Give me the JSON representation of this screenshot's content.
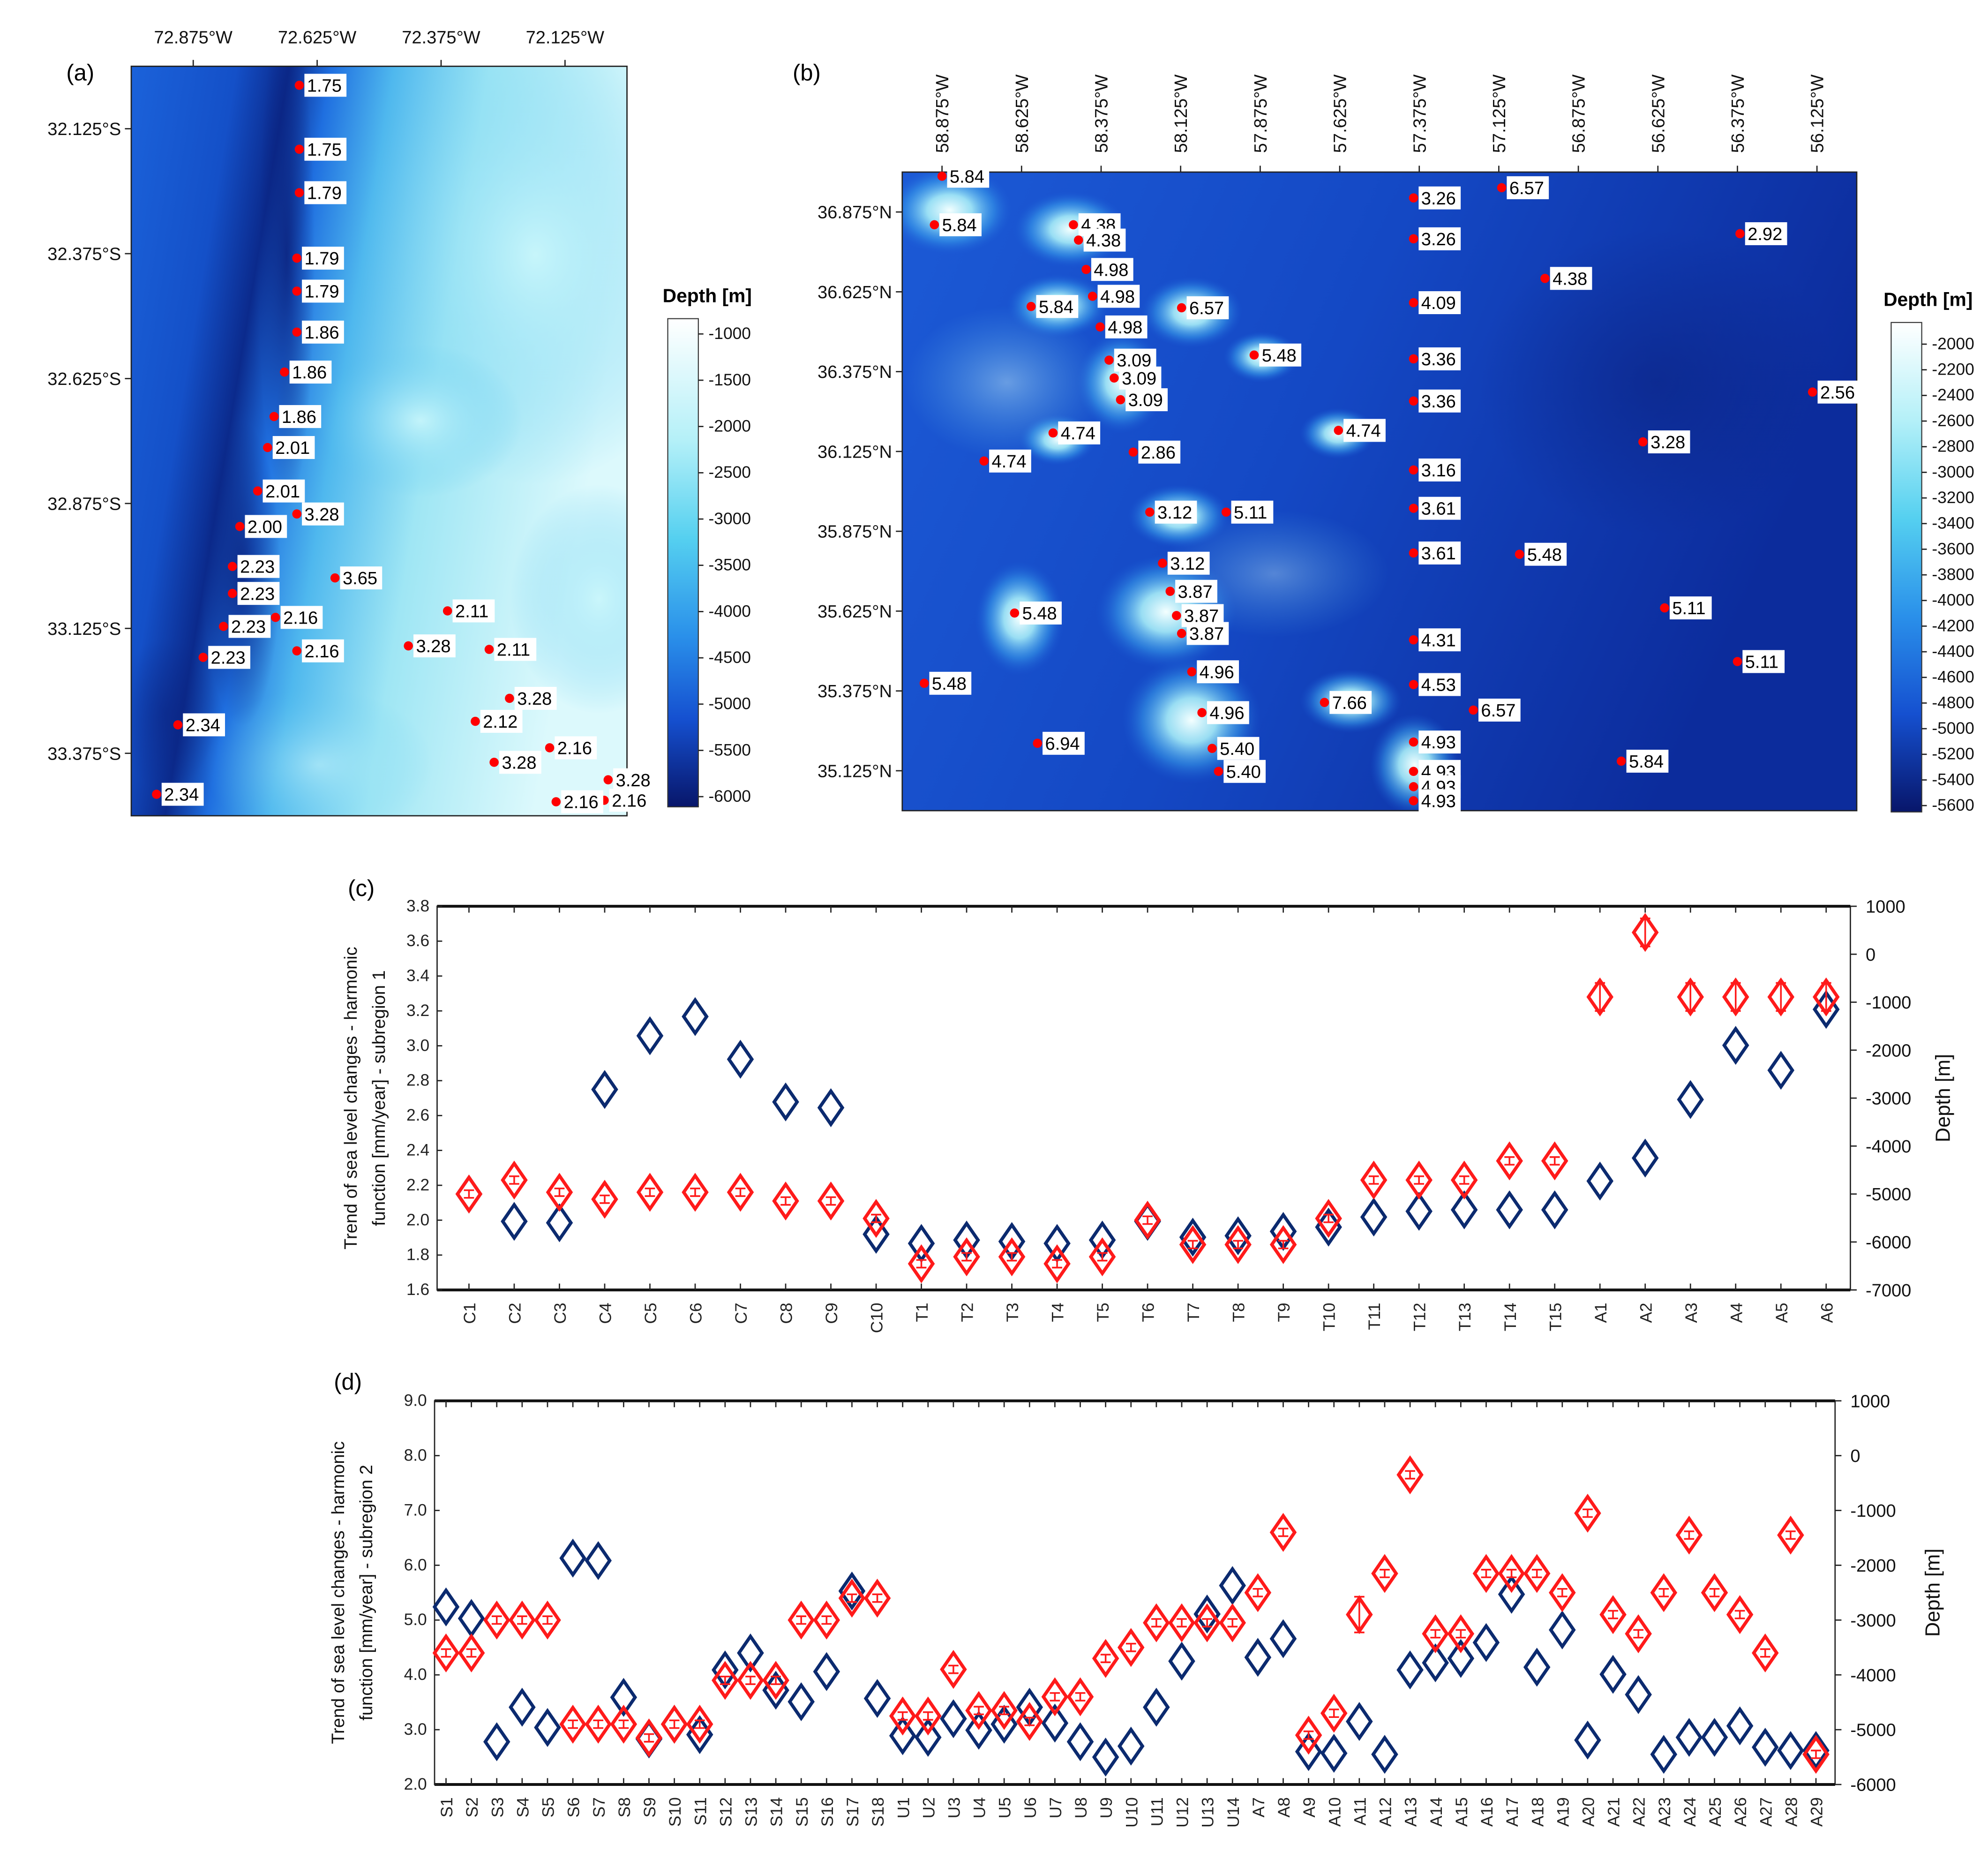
{
  "panels": {
    "a": "(a)",
    "b": "(b)",
    "c": "(c)",
    "d": "(d)"
  },
  "colors": {
    "point": "#ff0000",
    "trend": "#ff1a1a",
    "depth": "#0b2a6f"
  },
  "chart_data": [
    {
      "type": "scatter",
      "kind": "bathymetric map with labelled points",
      "title": "(a)",
      "lon_range_W": [
        73.0,
        72.0
      ],
      "lat_range_S": [
        32.0,
        33.5
      ],
      "x_ticks": [
        {
          "value": 72.875,
          "label": "72.875°W"
        },
        {
          "value": 72.625,
          "label": "72.625°W"
        },
        {
          "value": 72.375,
          "label": "72.375°W"
        },
        {
          "value": 72.125,
          "label": "72.125°W"
        }
      ],
      "y_ticks": [
        {
          "value": 32.125,
          "label": "32.125°S"
        },
        {
          "value": 32.375,
          "label": "32.375°S"
        },
        {
          "value": 32.625,
          "label": "32.625°S"
        },
        {
          "value": 32.875,
          "label": "32.875°S"
        },
        {
          "value": 33.125,
          "label": "33.125°S"
        },
        {
          "value": 33.375,
          "label": "33.375°S"
        }
      ],
      "colorbar": {
        "label": "Depth [m]",
        "range": [
          -1000,
          -6000
        ],
        "ticks": [
          "-1000",
          "-1500",
          "-2000",
          "-2500",
          "-3000",
          "-3500",
          "-4000",
          "-4500",
          "-5000",
          "-5500",
          "-6000"
        ]
      },
      "points": [
        {
          "lon": 72.661,
          "lat": 32.038,
          "label": "1.75"
        },
        {
          "lon": 72.661,
          "lat": 32.166,
          "label": "1.75"
        },
        {
          "lon": 72.661,
          "lat": 32.253,
          "label": "1.79"
        },
        {
          "lon": 72.666,
          "lat": 32.384,
          "label": "1.79"
        },
        {
          "lon": 72.666,
          "lat": 32.45,
          "label": "1.79"
        },
        {
          "lon": 72.666,
          "lat": 32.532,
          "label": "1.86"
        },
        {
          "lon": 72.691,
          "lat": 32.612,
          "label": "1.86"
        },
        {
          "lon": 72.712,
          "lat": 32.701,
          "label": "1.86"
        },
        {
          "lon": 72.725,
          "lat": 32.763,
          "label": "2.01"
        },
        {
          "lon": 72.745,
          "lat": 32.85,
          "label": "2.01"
        },
        {
          "lon": 72.781,
          "lat": 32.921,
          "label": "2.00"
        },
        {
          "lon": 72.666,
          "lat": 32.896,
          "label": "3.28"
        },
        {
          "lon": 72.796,
          "lat": 33.001,
          "label": "2.23"
        },
        {
          "lon": 72.796,
          "lat": 33.055,
          "label": "2.23"
        },
        {
          "lon": 72.589,
          "lat": 33.024,
          "label": "3.65"
        },
        {
          "lon": 72.814,
          "lat": 33.121,
          "label": "2.23"
        },
        {
          "lon": 72.709,
          "lat": 33.103,
          "label": "2.16"
        },
        {
          "lon": 72.855,
          "lat": 33.183,
          "label": "2.23"
        },
        {
          "lon": 72.666,
          "lat": 33.17,
          "label": "2.16"
        },
        {
          "lon": 72.362,
          "lat": 33.09,
          "label": "2.11"
        },
        {
          "lon": 72.441,
          "lat": 33.16,
          "label": "3.28"
        },
        {
          "lon": 72.278,
          "lat": 33.167,
          "label": "2.11"
        },
        {
          "lon": 72.237,
          "lat": 33.265,
          "label": "3.28"
        },
        {
          "lon": 72.306,
          "lat": 33.311,
          "label": "2.12"
        },
        {
          "lon": 72.906,
          "lat": 33.318,
          "label": "2.34"
        },
        {
          "lon": 72.156,
          "lat": 33.364,
          "label": "2.16"
        },
        {
          "lon": 72.268,
          "lat": 33.393,
          "label": "3.28"
        },
        {
          "lon": 72.038,
          "lat": 33.428,
          "label": "3.28"
        },
        {
          "lon": 72.046,
          "lat": 33.469,
          "label": "2.16"
        },
        {
          "lon": 72.143,
          "lat": 33.472,
          "label": "2.16"
        },
        {
          "lon": 72.949,
          "lat": 33.457,
          "label": "2.34"
        }
      ]
    },
    {
      "type": "scatter",
      "kind": "bathymetric map with labelled points",
      "title": "(b)",
      "lon_range_W": [
        59.0,
        56.0
      ],
      "lat_range_N": [
        37.0,
        35.0
      ],
      "x_ticks": [
        {
          "value": 58.875,
          "label": "58.875°W"
        },
        {
          "value": 58.625,
          "label": "58.625°W"
        },
        {
          "value": 58.375,
          "label": "58.375°W"
        },
        {
          "value": 58.125,
          "label": "58.125°W"
        },
        {
          "value": 57.875,
          "label": "57.875°W"
        },
        {
          "value": 57.625,
          "label": "57.625°W"
        },
        {
          "value": 57.375,
          "label": "57.375°W"
        },
        {
          "value": 57.125,
          "label": "57.125°W"
        },
        {
          "value": 56.875,
          "label": "56.875°W"
        },
        {
          "value": 56.625,
          "label": "56.625°W"
        },
        {
          "value": 56.375,
          "label": "56.375°W"
        },
        {
          "value": 56.125,
          "label": "56.125°W"
        }
      ],
      "y_ticks": [
        {
          "value": 36.875,
          "label": "36.875°N"
        },
        {
          "value": 36.625,
          "label": "36.625°N"
        },
        {
          "value": 36.375,
          "label": "36.375°N"
        },
        {
          "value": 36.125,
          "label": "36.125°N"
        },
        {
          "value": 35.875,
          "label": "35.875°N"
        },
        {
          "value": 35.625,
          "label": "35.625°N"
        },
        {
          "value": 35.375,
          "label": "35.375°N"
        },
        {
          "value": 35.125,
          "label": "35.125°N"
        }
      ],
      "colorbar": {
        "label": "Depth [m]",
        "range": [
          -2000,
          -5600
        ],
        "ticks": [
          "-2000",
          "-2200",
          "-2400",
          "-2600",
          "-2800",
          "-3000",
          "-3200",
          "-3400",
          "-3600",
          "-3800",
          "-4000",
          "-4200",
          "-4400",
          "-4600",
          "-4800",
          "-5000",
          "-5200",
          "-5400",
          "-5600"
        ]
      },
      "points": [
        {
          "lon": 58.875,
          "lat": 36.987,
          "label": "5.84"
        },
        {
          "lon": 58.899,
          "lat": 36.835,
          "label": "5.84"
        },
        {
          "lon": 58.462,
          "lat": 36.835,
          "label": "4.38"
        },
        {
          "lon": 58.446,
          "lat": 36.787,
          "label": "4.38"
        },
        {
          "lon": 58.422,
          "lat": 36.695,
          "label": "4.98"
        },
        {
          "lon": 58.595,
          "lat": 36.579,
          "label": "5.84"
        },
        {
          "lon": 58.402,
          "lat": 36.611,
          "label": "4.98"
        },
        {
          "lon": 58.378,
          "lat": 36.515,
          "label": "4.98"
        },
        {
          "lon": 58.122,
          "lat": 36.575,
          "label": "6.57"
        },
        {
          "lon": 58.35,
          "lat": 36.411,
          "label": "3.09"
        },
        {
          "lon": 58.334,
          "lat": 36.355,
          "label": "3.09"
        },
        {
          "lon": 58.314,
          "lat": 36.287,
          "label": "3.09"
        },
        {
          "lon": 57.894,
          "lat": 36.427,
          "label": "5.48"
        },
        {
          "lon": 58.526,
          "lat": 36.183,
          "label": "4.74"
        },
        {
          "lon": 58.743,
          "lat": 36.095,
          "label": "4.74"
        },
        {
          "lon": 58.274,
          "lat": 36.123,
          "label": "2.86"
        },
        {
          "lon": 57.629,
          "lat": 36.191,
          "label": "4.74"
        },
        {
          "lon": 58.222,
          "lat": 35.935,
          "label": "3.12"
        },
        {
          "lon": 57.982,
          "lat": 35.935,
          "label": "5.11"
        },
        {
          "lon": 58.182,
          "lat": 35.775,
          "label": "3.12"
        },
        {
          "lon": 58.158,
          "lat": 35.687,
          "label": "3.87"
        },
        {
          "lon": 58.138,
          "lat": 35.611,
          "label": "3.87"
        },
        {
          "lon": 58.122,
          "lat": 35.555,
          "label": "3.87"
        },
        {
          "lon": 58.647,
          "lat": 35.619,
          "label": "5.48"
        },
        {
          "lon": 58.09,
          "lat": 35.435,
          "label": "4.96"
        },
        {
          "lon": 58.931,
          "lat": 35.399,
          "label": "5.48"
        },
        {
          "lon": 58.058,
          "lat": 35.307,
          "label": "4.96"
        },
        {
          "lon": 57.673,
          "lat": 35.339,
          "label": "7.66"
        },
        {
          "lon": 58.575,
          "lat": 35.211,
          "label": "6.94"
        },
        {
          "lon": 58.026,
          "lat": 35.195,
          "label": "5.40"
        },
        {
          "lon": 58.006,
          "lat": 35.123,
          "label": "5.40"
        },
        {
          "lon": 57.393,
          "lat": 36.919,
          "label": "3.26"
        },
        {
          "lon": 57.393,
          "lat": 36.791,
          "label": "3.26"
        },
        {
          "lon": 57.393,
          "lat": 36.591,
          "label": "4.09"
        },
        {
          "lon": 57.393,
          "lat": 36.415,
          "label": "3.36"
        },
        {
          "lon": 57.393,
          "lat": 36.283,
          "label": "3.36"
        },
        {
          "lon": 57.393,
          "lat": 36.067,
          "label": "3.16"
        },
        {
          "lon": 57.393,
          "lat": 35.947,
          "label": "3.61"
        },
        {
          "lon": 57.393,
          "lat": 35.807,
          "label": "3.61"
        },
        {
          "lon": 57.393,
          "lat": 35.535,
          "label": "4.31"
        },
        {
          "lon": 57.393,
          "lat": 35.395,
          "label": "4.53"
        },
        {
          "lon": 57.393,
          "lat": 35.215,
          "label": "4.93"
        },
        {
          "lon": 57.393,
          "lat": 35.123,
          "label": "4.93"
        },
        {
          "lon": 57.393,
          "lat": 35.075,
          "label": "4.93"
        },
        {
          "lon": 57.393,
          "lat": 35.031,
          "label": "4.93"
        },
        {
          "lon": 57.116,
          "lat": 36.951,
          "label": "6.57"
        },
        {
          "lon": 56.98,
          "lat": 36.667,
          "label": "4.38"
        },
        {
          "lon": 57.205,
          "lat": 35.315,
          "label": "6.57"
        },
        {
          "lon": 57.06,
          "lat": 35.803,
          "label": "5.48"
        },
        {
          "lon": 56.367,
          "lat": 36.807,
          "label": "2.92"
        },
        {
          "lon": 56.139,
          "lat": 36.311,
          "label": "2.56"
        },
        {
          "lon": 56.672,
          "lat": 36.155,
          "label": "3.28"
        },
        {
          "lon": 56.604,
          "lat": 35.635,
          "label": "5.11"
        },
        {
          "lon": 56.375,
          "lat": 35.467,
          "label": "5.11"
        },
        {
          "lon": 56.74,
          "lat": 35.155,
          "label": "5.84"
        }
      ]
    },
    {
      "type": "scatter",
      "title": "(c)",
      "ylabel": [
        "Trend of sea level changes - harmonic",
        "function [mm/year] - subregion 1"
      ],
      "y2label": "Depth [m]",
      "ylim": [
        1.6,
        3.8
      ],
      "y2lim": [
        -7000,
        1000
      ],
      "y_ticks": [
        "1.6",
        "1.8",
        "2.0",
        "2.2",
        "2.4",
        "2.6",
        "2.8",
        "3.0",
        "3.2",
        "3.4",
        "3.6",
        "3.8"
      ],
      "y2_ticks": [
        "-7000",
        "-6000",
        "-5000",
        "-4000",
        "-3000",
        "-2000",
        "-1000",
        "0",
        "1000"
      ],
      "categories": [
        "C1",
        "C2",
        "C3",
        "C4",
        "C5",
        "C6",
        "C7",
        "C8",
        "C9",
        "C10",
        "T1",
        "T2",
        "T3",
        "T4",
        "T5",
        "T6",
        "T7",
        "T8",
        "T9",
        "T10",
        "T11",
        "T12",
        "T13",
        "T14",
        "T15",
        "A1",
        "A2",
        "A3",
        "A4",
        "A5",
        "A6"
      ],
      "series": [
        {
          "name": "Trend [mm/year]",
          "axis": "left",
          "color": "#ff1a1a",
          "values": [
            2.15,
            2.23,
            2.16,
            2.12,
            2.16,
            2.16,
            2.16,
            2.11,
            2.11,
            2.01,
            1.75,
            1.79,
            1.79,
            1.75,
            1.79,
            2.0,
            1.86,
            1.86,
            1.86,
            2.01,
            2.23,
            2.23,
            2.23,
            2.34,
            2.34,
            3.28,
            3.65,
            3.28,
            3.28,
            3.28,
            3.28
          ]
        },
        {
          "name": "Depth [m]",
          "axis": "right",
          "color": "#0b2a6f",
          "values": [
            -5000,
            -5570,
            -5600,
            -2820,
            -1700,
            -1300,
            -2190,
            -3080,
            -3200,
            -5840,
            -6030,
            -5960,
            -5990,
            -6030,
            -5960,
            -5570,
            -5900,
            -5870,
            -5780,
            -5690,
            -5480,
            -5360,
            -5330,
            -5330,
            -5330,
            -4730,
            -4250,
            -3030,
            -1900,
            -2420,
            -1150
          ]
        }
      ]
    },
    {
      "type": "scatter",
      "title": "(d)",
      "ylabel": [
        "Trend of sea level changes - harmonic",
        "function [mm/year] - subregion 2"
      ],
      "y2label": "Depth [m]",
      "ylim": [
        2.0,
        9.0
      ],
      "y2lim": [
        -6000,
        1000
      ],
      "y_ticks": [
        "2.0",
        "3.0",
        "4.0",
        "5.0",
        "6.0",
        "7.0",
        "8.0",
        "9.0"
      ],
      "y2_ticks": [
        "-6000",
        "-5000",
        "-4000",
        "-3000",
        "-2000",
        "-1000",
        "0",
        "1000"
      ],
      "categories": [
        "S1",
        "S2",
        "S3",
        "S4",
        "S5",
        "S6",
        "S7",
        "S8",
        "S9",
        "S10",
        "S11",
        "S12",
        "S13",
        "S14",
        "S15",
        "S16",
        "S17",
        "S18",
        "U1",
        "U2",
        "U3",
        "U4",
        "U5",
        "U6",
        "U7",
        "U8",
        "U9",
        "U10",
        "U11",
        "U12",
        "U13",
        "U14",
        "A7",
        "A8",
        "A9",
        "A10",
        "A11",
        "A12",
        "A13",
        "A14",
        "A15",
        "A16",
        "A17",
        "A18",
        "A19",
        "A20",
        "A21",
        "A22",
        "A23",
        "A24",
        "A25",
        "A26",
        "A27",
        "A28",
        "A29"
      ],
      "series": [
        {
          "name": "Trend [mm/year]",
          "axis": "left",
          "color": "#ff1a1a",
          "values": [
            4.4,
            4.4,
            5.0,
            5.0,
            5.0,
            3.1,
            3.1,
            3.1,
            2.85,
            3.1,
            3.1,
            3.9,
            3.9,
            3.9,
            5.0,
            5.0,
            5.4,
            5.4,
            3.25,
            3.25,
            4.1,
            3.35,
            3.35,
            3.15,
            3.6,
            3.6,
            4.3,
            4.5,
            4.95,
            4.95,
            4.95,
            4.95,
            5.5,
            6.6,
            2.9,
            3.3,
            5.1,
            5.85,
            7.65,
            4.75,
            4.75,
            5.85,
            5.85,
            5.85,
            5.5,
            6.95,
            5.1,
            4.75,
            5.5,
            6.55,
            5.5,
            5.1,
            4.4,
            6.55,
            2.55
          ]
        },
        {
          "name": "Depth [m]",
          "axis": "right",
          "color": "#0b2a6f",
          "values": [
            -2760,
            -2970,
            -5220,
            -4590,
            -4960,
            -1870,
            -1915,
            -4410,
            -5170,
            -4900,
            -5090,
            -3910,
            -3600,
            -4280,
            -4490,
            -3940,
            -2470,
            -4430,
            -5110,
            -5140,
            -4800,
            -5010,
            -4900,
            -4590,
            -4880,
            -5220,
            -5500,
            -5300,
            -4590,
            -3750,
            -2890,
            -2370,
            -3680,
            -3340,
            -5400,
            -5430,
            -4850,
            -5450,
            -3910,
            -3780,
            -3700,
            -3410,
            -2530,
            -3860,
            -3180,
            -5190,
            -3990,
            -4360,
            -5450,
            -5140,
            -5140,
            -4930,
            -5320,
            -5380,
            -5380
          ]
        }
      ]
    }
  ]
}
